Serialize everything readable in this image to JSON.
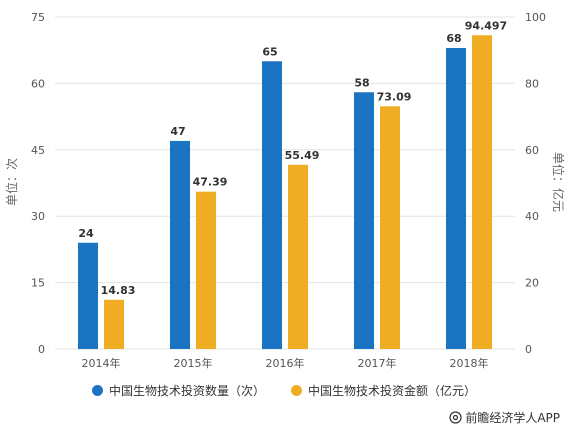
{
  "chart_data": {
    "type": "bar",
    "categories": [
      "2014年",
      "2015年",
      "2016年",
      "2017年",
      "2018年"
    ],
    "series": [
      {
        "name": "中国生物技术投资数量（次）",
        "axis": "left",
        "color": "#1b74c2",
        "values": [
          24,
          47,
          65,
          58,
          68
        ],
        "labels": [
          "24",
          "47",
          "65",
          "58",
          "68"
        ]
      },
      {
        "name": "中国生物技术投资金额（亿元）",
        "axis": "right",
        "color": "#efad24",
        "values": [
          14.83,
          47.39,
          55.49,
          73.09,
          94.497
        ],
        "labels": [
          "14.83",
          "47.39",
          "55.49",
          "73.09",
          "94.497"
        ]
      }
    ],
    "ylabel": "单位：次",
    "y2label": "单位：亿元",
    "ylim": [
      0,
      75
    ],
    "y2lim": [
      0,
      100
    ],
    "yticks": [
      "0",
      "15",
      "30",
      "45",
      "60",
      "75"
    ],
    "y2ticks": [
      "0",
      "20",
      "40",
      "60",
      "80",
      "100"
    ],
    "grid": true,
    "legend_position": "bottom"
  },
  "legend": {
    "count_label": "中国生物技术投资数量（次）",
    "amount_label": "中国生物技术投资金额（亿元）",
    "count_color": "#1b74c2",
    "amount_color": "#efad24"
  },
  "source": {
    "icon": "at-icon",
    "text": "前瞻经济学人APP"
  }
}
